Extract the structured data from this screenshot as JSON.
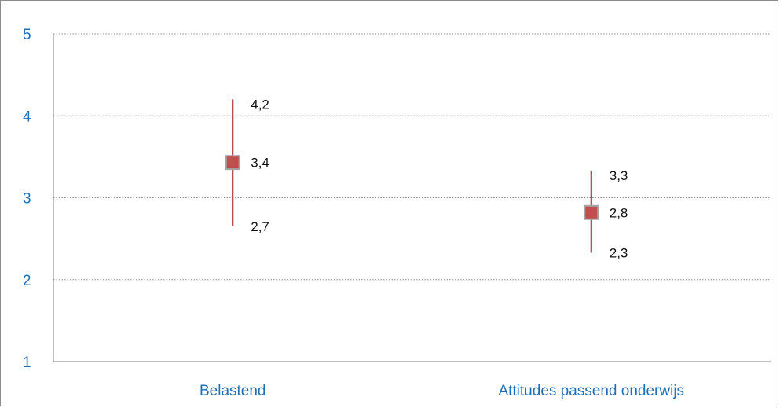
{
  "chart_data": {
    "type": "scatter",
    "subtype": "range-with-mean",
    "title": "",
    "xlabel": "",
    "ylabel": "",
    "ylim": [
      1,
      5
    ],
    "yticks": [
      "1",
      "2",
      "3",
      "4",
      "5"
    ],
    "grid": "horizontal-dotted",
    "categories": [
      "Belastend",
      "Attitudes passend onderwijs"
    ],
    "points": [
      {
        "category": "Belastend",
        "mean": 3.43,
        "low": 2.65,
        "high": 4.2,
        "label_mean": "3,4",
        "label_low": "2,7",
        "label_high": "4,2"
      },
      {
        "category": "Attitudes passend onderwijs",
        "mean": 2.82,
        "low": 2.33,
        "high": 3.33,
        "label_mean": "2,8",
        "label_low": "2,3",
        "label_high": "3,3"
      }
    ],
    "colors": {
      "marker_fill": "#c0504d",
      "marker_border": "#a6a6a6",
      "range_line": "#a31515",
      "tick_text": "#1f6fb5",
      "label_text": "#111111",
      "axis": "#7f7f7f",
      "grid": "#8c8c8c"
    }
  }
}
